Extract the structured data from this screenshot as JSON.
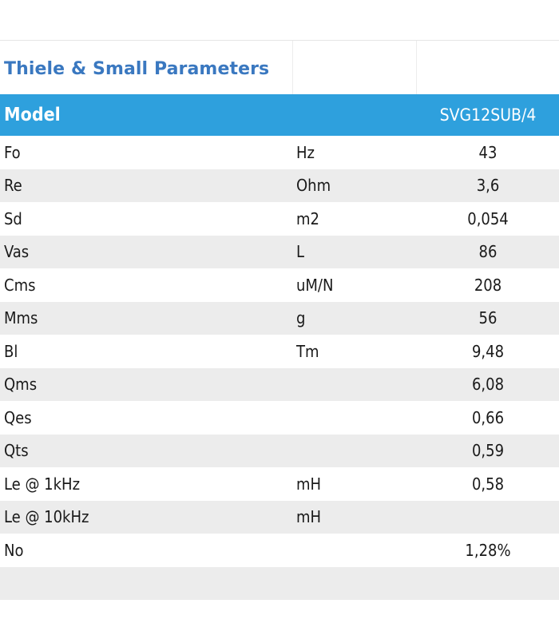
{
  "table": {
    "title": "Thiele & Small Parameters",
    "header": {
      "model_label": "Model",
      "model_value": "SVG12SUB/4"
    },
    "rows": [
      {
        "param": "Fo",
        "unit": "Hz",
        "value": "43"
      },
      {
        "param": "Re",
        "unit": "Ohm",
        "value": "3,6"
      },
      {
        "param": "Sd",
        "unit": "m2",
        "value": "0,054"
      },
      {
        "param": "Vas",
        "unit": "L",
        "value": "86"
      },
      {
        "param": "Cms",
        "unit": "uM/N",
        "value": "208"
      },
      {
        "param": "Mms",
        "unit": "g",
        "value": "56"
      },
      {
        "param": "Bl",
        "unit": "Tm",
        "value": "9,48"
      },
      {
        "param": "Qms",
        "unit": "",
        "value": "6,08"
      },
      {
        "param": "Qes",
        "unit": "",
        "value": "0,66"
      },
      {
        "param": "Qts",
        "unit": "",
        "value": "0,59"
      },
      {
        "param": "Le @ 1kHz",
        "unit": "mH",
        "value": "0,58"
      },
      {
        "param": "Le @ 10kHz",
        "unit": "mH",
        "value": ""
      },
      {
        "param": "No",
        "unit": "",
        "value": "1,28%"
      },
      {
        "param": "",
        "unit": "",
        "value": ""
      }
    ],
    "colors": {
      "title": "#3a78c0",
      "header_bg": "#2ea0dd",
      "stripe": "#ececec"
    }
  }
}
